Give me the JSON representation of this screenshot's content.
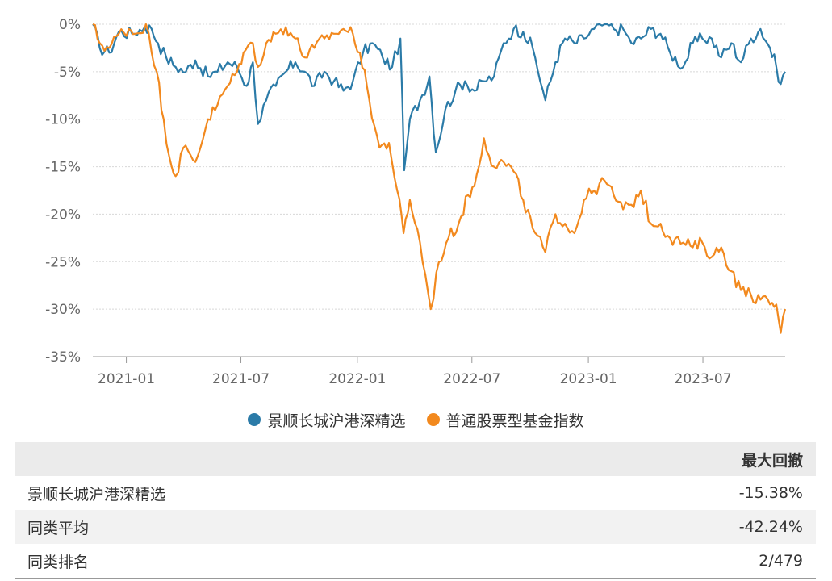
{
  "colors": {
    "series1": "#2b7ba8",
    "series2": "#f2891e",
    "grid": "#d8d8d8",
    "axis": "#999999"
  },
  "chart_data": {
    "type": "line",
    "ylim": [
      -35,
      0
    ],
    "yticks": [
      "0%",
      "-5%",
      "-10%",
      "-15%",
      "-20%",
      "-25%",
      "-30%",
      "-35%"
    ],
    "ytick_values": [
      0,
      -5,
      -10,
      -15,
      -20,
      -25,
      -30,
      -35
    ],
    "xlim": [
      "2020-11-09",
      "2023-11-08"
    ],
    "xticks": [
      "2021-01",
      "2021-07",
      "2022-01",
      "2022-07",
      "2023-01",
      "2023-07"
    ],
    "xtick_dates": [
      "2021-01-01",
      "2021-07-01",
      "2022-01-01",
      "2022-07-01",
      "2023-01-01",
      "2023-07-01"
    ],
    "series": [
      {
        "name": "景顺长城沪港深精选",
        "color": "#2b7ba8",
        "x": [
          "2020-11-09",
          "2020-11-20",
          "2020-12-05",
          "2020-12-20",
          "2021-01-10",
          "2021-01-30",
          "2021-02-10",
          "2021-02-20",
          "2021-03-05",
          "2021-03-20",
          "2021-04-05",
          "2021-04-20",
          "2021-05-10",
          "2021-05-25",
          "2021-06-10",
          "2021-06-25",
          "2021-07-10",
          "2021-07-20",
          "2021-07-28",
          "2021-08-10",
          "2021-08-25",
          "2021-09-10",
          "2021-09-25",
          "2021-10-10",
          "2021-10-25",
          "2021-11-10",
          "2021-11-25",
          "2021-12-10",
          "2021-12-25",
          "2022-01-10",
          "2022-01-25",
          "2022-02-10",
          "2022-02-25",
          "2022-03-10",
          "2022-03-16",
          "2022-03-25",
          "2022-04-10",
          "2022-04-25",
          "2022-05-05",
          "2022-05-20",
          "2022-06-05",
          "2022-06-20",
          "2022-07-05",
          "2022-07-20",
          "2022-08-05",
          "2022-08-20",
          "2022-09-05",
          "2022-09-20",
          "2022-10-05",
          "2022-10-25",
          "2022-11-10",
          "2022-11-25",
          "2022-12-10",
          "2022-12-25",
          "2023-01-10",
          "2023-01-27",
          "2023-02-10",
          "2023-02-25",
          "2023-03-10",
          "2023-03-25",
          "2023-04-10",
          "2023-04-25",
          "2023-05-10",
          "2023-05-31",
          "2023-06-15",
          "2023-06-30",
          "2023-07-15",
          "2023-07-30",
          "2023-08-15",
          "2023-08-30",
          "2023-09-15",
          "2023-09-30",
          "2023-10-15",
          "2023-10-25",
          "2023-11-01",
          "2023-11-08"
        ],
        "values": [
          0,
          -2.5,
          -3.0,
          -0.8,
          -1.0,
          -0.3,
          -0.5,
          -2.0,
          -3.5,
          -4.5,
          -5.0,
          -3.8,
          -5.5,
          -5.0,
          -4.0,
          -4.5,
          -6.5,
          -4.0,
          -10.5,
          -8.0,
          -6.5,
          -5.0,
          -4.0,
          -5.0,
          -6.5,
          -5.0,
          -6.0,
          -7.0,
          -6.0,
          -3.0,
          -2.0,
          -3.5,
          -4.5,
          -1.5,
          -15.38,
          -10.0,
          -8.0,
          -5.5,
          -13.5,
          -9.0,
          -7.0,
          -6.0,
          -7.0,
          -6.0,
          -5.5,
          -2.0,
          -0.5,
          -0.8,
          -2.5,
          -8.0,
          -4.0,
          -1.5,
          -2.0,
          -1.5,
          -0.5,
          0,
          -0.5,
          -0.5,
          -2.0,
          -1.5,
          -0.5,
          -1.0,
          -3.0,
          -4.5,
          -2.0,
          -1.5,
          -1.5,
          -3.5,
          -2.0,
          -4.0,
          -1.5,
          -0.5,
          -2.5,
          -4.5,
          -6.3,
          -5.0
        ]
      },
      {
        "name": "普通股票型基金指数",
        "color": "#f2891e",
        "x": [
          "2020-11-09",
          "2020-11-20",
          "2020-12-05",
          "2020-12-20",
          "2021-01-05",
          "2021-01-15",
          "2021-02-01",
          "2021-02-10",
          "2021-02-18",
          "2021-03-01",
          "2021-03-10",
          "2021-03-20",
          "2021-04-01",
          "2021-04-20",
          "2021-05-10",
          "2021-05-25",
          "2021-06-10",
          "2021-06-25",
          "2021-07-05",
          "2021-07-20",
          "2021-07-28",
          "2021-08-10",
          "2021-08-25",
          "2021-09-10",
          "2021-09-25",
          "2021-10-10",
          "2021-10-25",
          "2021-11-10",
          "2021-11-25",
          "2021-12-10",
          "2021-12-25",
          "2022-01-05",
          "2022-01-20",
          "2022-02-05",
          "2022-02-20",
          "2022-03-05",
          "2022-03-15",
          "2022-03-25",
          "2022-04-10",
          "2022-04-27",
          "2022-05-10",
          "2022-05-25",
          "2022-06-10",
          "2022-06-25",
          "2022-07-05",
          "2022-07-20",
          "2022-08-05",
          "2022-08-20",
          "2022-09-05",
          "2022-09-20",
          "2022-10-05",
          "2022-10-25",
          "2022-11-10",
          "2022-11-25",
          "2022-12-10",
          "2022-12-25",
          "2023-01-10",
          "2023-01-27",
          "2023-02-10",
          "2023-02-25",
          "2023-03-10",
          "2023-03-25",
          "2023-04-10",
          "2023-04-25",
          "2023-05-10",
          "2023-05-31",
          "2023-06-15",
          "2023-06-30",
          "2023-07-15",
          "2023-07-30",
          "2023-08-15",
          "2023-08-30",
          "2023-09-15",
          "2023-09-30",
          "2023-10-15",
          "2023-10-25",
          "2023-11-01",
          "2023-11-08"
        ],
        "values": [
          0,
          -2.0,
          -2.5,
          -1.0,
          -0.5,
          -1.0,
          0,
          -3.0,
          -5.0,
          -10.0,
          -14.0,
          -16.0,
          -13.0,
          -14.5,
          -10.0,
          -8.5,
          -6.5,
          -5.0,
          -3.0,
          -2.0,
          -4.5,
          -2.0,
          -1.0,
          -0.3,
          -1.5,
          -3.5,
          -2.5,
          -1.5,
          -1.0,
          -0.5,
          -1.0,
          -3.0,
          -8.0,
          -13.0,
          -12.5,
          -17.5,
          -22.0,
          -18.5,
          -23.0,
          -30.0,
          -25.0,
          -22.5,
          -21.0,
          -18.0,
          -17.0,
          -12.0,
          -15.0,
          -14.5,
          -15.5,
          -18.5,
          -21.5,
          -24.0,
          -20.0,
          -21.0,
          -22.0,
          -18.5,
          -17.5,
          -16.5,
          -18.0,
          -19.5,
          -19.0,
          -17.5,
          -21.0,
          -21.0,
          -22.5,
          -23.0,
          -23.5,
          -23.0,
          -24.5,
          -23.5,
          -26.0,
          -28.0,
          -28.5,
          -29.0,
          -29.5,
          -29.5,
          -32.5,
          -30.0
        ]
      }
    ]
  },
  "legend": {
    "items": [
      "景顺长城沪港深精选",
      "普通股票型基金指数"
    ]
  },
  "table": {
    "header": "最大回撤",
    "rows": [
      {
        "label": "景顺长城沪港深精选",
        "value": "-15.38%"
      },
      {
        "label": "同类平均",
        "value": "-42.24%"
      },
      {
        "label": "同类排名",
        "value": "2/479"
      }
    ]
  }
}
